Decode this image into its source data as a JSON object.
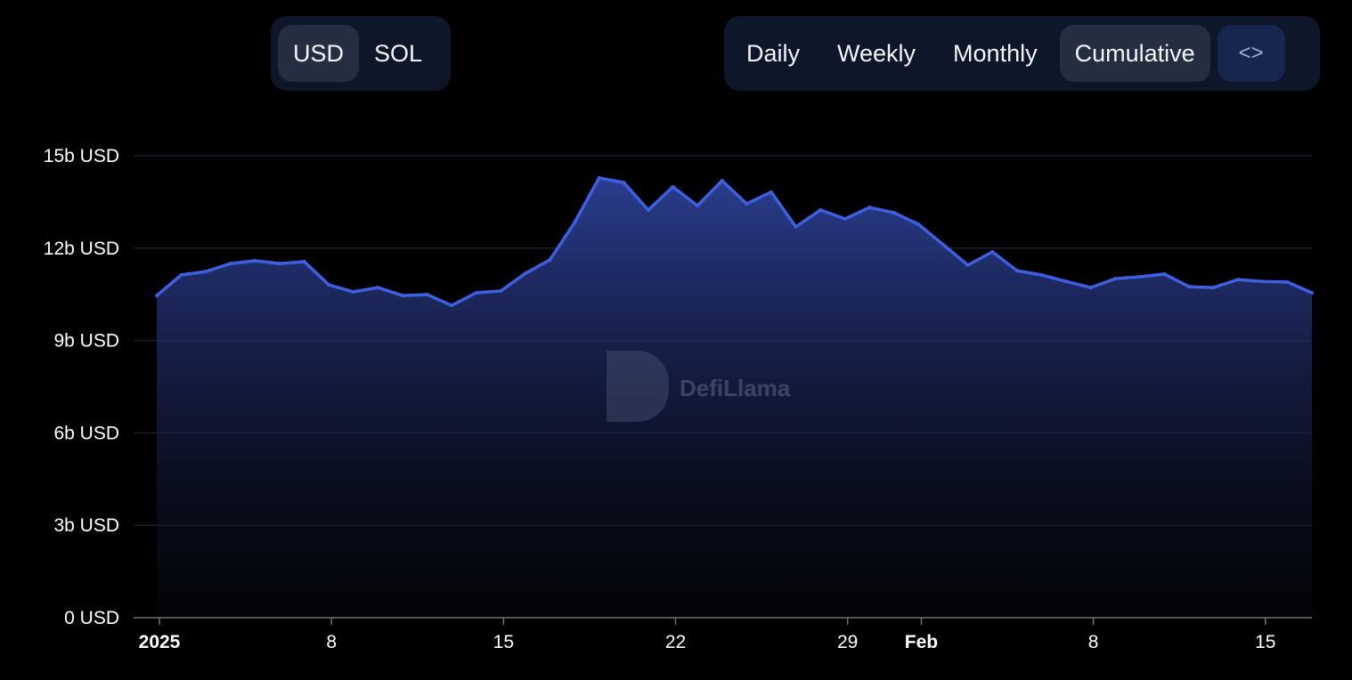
{
  "currency_toggle": {
    "options": [
      "USD",
      "SOL"
    ],
    "selected": "USD"
  },
  "period_toggle": {
    "options": [
      "Daily",
      "Weekly",
      "Monthly",
      "Cumulative"
    ],
    "selected": "Cumulative",
    "embed_icon": "code-brackets-icon",
    "embed_label": "<>"
  },
  "watermark": "DefiLlama",
  "colors": {
    "background": "#000000",
    "line": "#3d5fe0",
    "fill_top": "#2a3d8f",
    "panel": "#0e1729",
    "active": "#252e41"
  },
  "chart_data": {
    "type": "area",
    "title": "",
    "xlabel": "",
    "ylabel": "",
    "ylim": [
      0,
      15
    ],
    "y_unit": "b USD",
    "y_ticks": [
      "0 USD",
      "3b USD",
      "6b USD",
      "9b USD",
      "12b USD",
      "15b USD"
    ],
    "y_tick_values": [
      0,
      3,
      6,
      9,
      12,
      15
    ],
    "x_ticks": [
      {
        "date": "2025-01-01",
        "label": "2025",
        "bold": true
      },
      {
        "date": "2025-01-08",
        "label": "8"
      },
      {
        "date": "2025-01-15",
        "label": "15"
      },
      {
        "date": "2025-01-22",
        "label": "22"
      },
      {
        "date": "2025-01-29",
        "label": "29"
      },
      {
        "date": "2025-02-01",
        "label": "Feb",
        "bold": true
      },
      {
        "date": "2025-02-08",
        "label": "8"
      },
      {
        "date": "2025-02-15",
        "label": "15"
      }
    ],
    "grid": true,
    "series": [
      {
        "x": [
          "2025-01-01",
          "2025-01-02",
          "2025-01-03",
          "2025-01-04",
          "2025-01-05",
          "2025-01-06",
          "2025-01-07",
          "2025-01-08",
          "2025-01-09",
          "2025-01-10",
          "2025-01-11",
          "2025-01-12",
          "2025-01-13",
          "2025-01-14",
          "2025-01-15",
          "2025-01-16",
          "2025-01-17",
          "2025-01-18",
          "2025-01-19",
          "2025-01-20",
          "2025-01-21",
          "2025-01-22",
          "2025-01-23",
          "2025-01-24",
          "2025-01-25",
          "2025-01-26",
          "2025-01-27",
          "2025-01-28",
          "2025-01-29",
          "2025-01-30",
          "2025-01-31",
          "2025-02-01",
          "2025-02-02",
          "2025-02-03",
          "2025-02-04",
          "2025-02-05",
          "2025-02-06",
          "2025-02-07",
          "2025-02-08",
          "2025-02-09",
          "2025-02-10",
          "2025-02-11",
          "2025-02-12",
          "2025-02-13",
          "2025-02-14",
          "2025-02-15",
          "2025-02-16",
          "2025-02-17"
        ],
        "values": [
          10.46,
          11.13,
          11.24,
          11.5,
          11.59,
          11.5,
          11.56,
          10.81,
          10.58,
          10.72,
          10.46,
          10.49,
          10.14,
          10.55,
          10.61,
          11.18,
          11.62,
          12.83,
          14.28,
          14.13,
          13.24,
          13.99,
          13.38,
          14.19,
          13.44,
          13.82,
          12.69,
          13.24,
          12.95,
          13.32,
          13.15,
          12.77,
          12.11,
          11.45,
          11.88,
          11.27,
          11.13,
          10.92,
          10.72,
          11.01,
          11.07,
          11.16,
          10.75,
          10.72,
          10.98,
          10.92,
          10.9,
          10.55
        ]
      }
    ]
  }
}
